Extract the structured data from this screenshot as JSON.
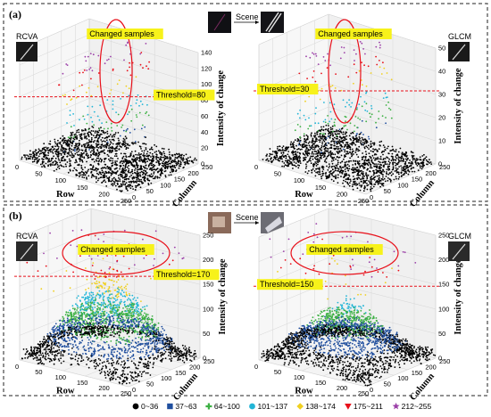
{
  "figure": {
    "panel_a_label": "(a)",
    "panel_b_label": "(b)",
    "scene_label": "Scene",
    "legend": [
      {
        "label": "0~36",
        "color": "#000000",
        "marker": "circle"
      },
      {
        "label": "37~63",
        "color": "#1f4e9e",
        "marker": "square"
      },
      {
        "label": "64~100",
        "color": "#3cb043",
        "marker": "plus"
      },
      {
        "label": "101~137",
        "color": "#22b5d6",
        "marker": "circle"
      },
      {
        "label": "138~174",
        "color": "#f0d020",
        "marker": "diamond"
      },
      {
        "label": "175~211",
        "color": "#e8101a",
        "marker": "triangle-down"
      },
      {
        "label": "212~255",
        "color": "#9b3fa8",
        "marker": "star"
      }
    ]
  },
  "chart_data": [
    {
      "type": "scatter",
      "panel": "(a)",
      "method": "RCVA",
      "annotation": "Changed samples",
      "threshold_label": "Threshold=80",
      "threshold": 80,
      "xlabel": "Row",
      "ylabel": "Column",
      "zlabel": "Intensity of change",
      "xticks": [
        0,
        50,
        100,
        150,
        200,
        250
      ],
      "yticks": [
        0,
        50,
        100,
        150,
        200,
        250
      ],
      "zticks": [
        0,
        20,
        40,
        60,
        80,
        100,
        120,
        140
      ],
      "zlim": [
        0,
        140
      ]
    },
    {
      "type": "scatter",
      "panel": "(a)",
      "method": "GLCM",
      "annotation": "Changed samples",
      "threshold_label": "Threshold=30",
      "threshold": 30,
      "xlabel": "Row",
      "ylabel": "Column",
      "zlabel": "Intensity of change",
      "xticks": [
        0,
        50,
        100,
        150,
        200,
        250
      ],
      "yticks": [
        0,
        50,
        100,
        150,
        200,
        250
      ],
      "zticks": [
        0,
        10,
        20,
        30,
        40,
        50
      ],
      "zlim": [
        0,
        50
      ]
    },
    {
      "type": "scatter",
      "panel": "(b)",
      "method": "RCVA",
      "annotation": "Changed samples",
      "threshold_label": "Threshold=170",
      "threshold": 170,
      "xlabel": "Row",
      "ylabel": "Column",
      "zlabel": "Intensity of change",
      "xticks": [
        0,
        50,
        100,
        150,
        200,
        250
      ],
      "yticks": [
        0,
        50,
        100,
        150,
        200,
        250
      ],
      "zticks": [
        0,
        50,
        100,
        150,
        200,
        250
      ],
      "zlim": [
        0,
        250
      ]
    },
    {
      "type": "scatter",
      "panel": "(b)",
      "method": "GLCM",
      "annotation": "Changed samples",
      "threshold_label": "Threshold=150",
      "threshold": 150,
      "xlabel": "Row",
      "ylabel": "Column",
      "zlabel": "Intensity of change",
      "xticks": [
        0,
        50,
        100,
        150,
        200,
        250
      ],
      "yticks": [
        0,
        50,
        100,
        150,
        200,
        250
      ],
      "zticks": [
        0,
        50,
        100,
        150,
        200,
        250
      ],
      "zlim": [
        0,
        250
      ]
    }
  ]
}
